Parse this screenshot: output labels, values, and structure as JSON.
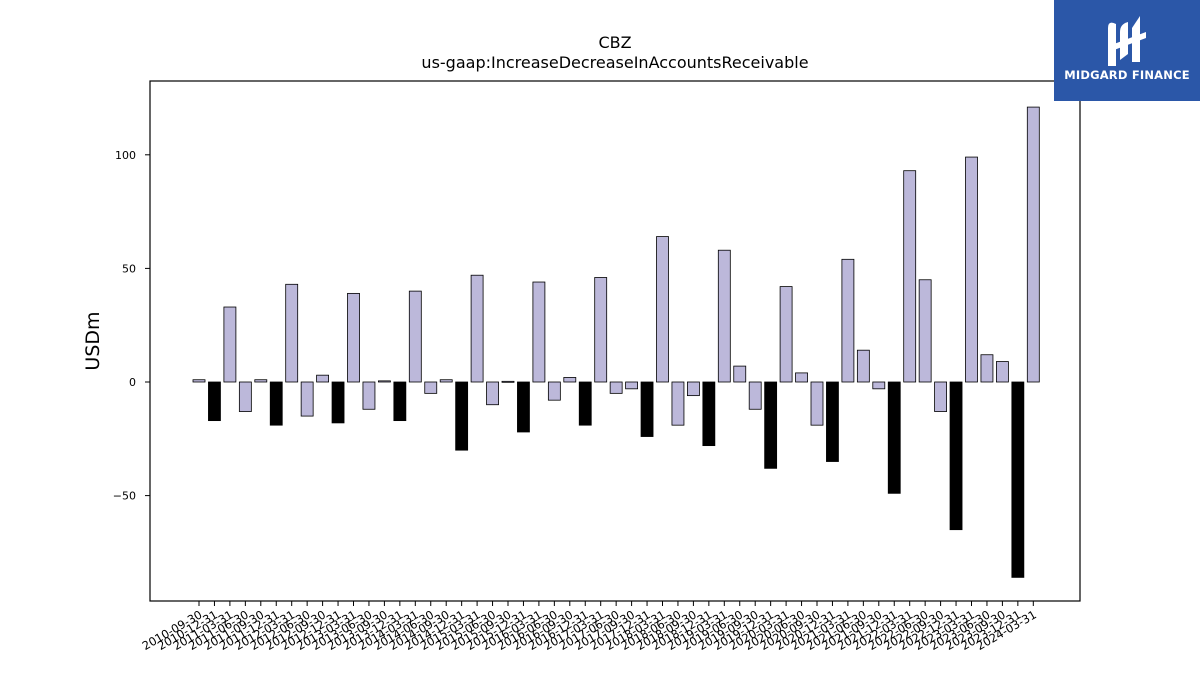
{
  "brand": {
    "name": "MIDGARD FINANCE",
    "logo_icon": "midgard-logo-icon",
    "color": "#2b57a8"
  },
  "chart_data": {
    "type": "bar",
    "title": "CBZ",
    "subtitle": "us-gaap:IncreaseDecreaseInAccountsReceivable",
    "ylabel": "USDm",
    "xlabel": "",
    "ylim": [
      -96,
      132
    ],
    "yticks": [
      -50,
      0,
      50,
      100
    ],
    "grid": false,
    "legend": "none",
    "colors": {
      "positive": "#bcb8da",
      "negative": "#000000",
      "edge": "#000000"
    },
    "categories": [
      "2010-09-30",
      "2010-12-31",
      "2011-03-31",
      "2011-06-30",
      "2011-09-30",
      "2011-12-31",
      "2012-03-31",
      "2012-06-30",
      "2012-09-30",
      "2012-12-31",
      "2013-03-31",
      "2013-06-30",
      "2013-09-30",
      "2013-12-31",
      "2014-03-31",
      "2014-06-30",
      "2014-09-30",
      "2014-12-31",
      "2015-03-31",
      "2015-06-30",
      "2015-09-30",
      "2015-12-31",
      "2016-03-31",
      "2016-06-30",
      "2016-09-30",
      "2016-12-31",
      "2017-03-31",
      "2017-06-30",
      "2017-09-30",
      "2017-12-31",
      "2018-03-31",
      "2018-06-30",
      "2018-09-30",
      "2018-12-31",
      "2019-03-31",
      "2019-06-30",
      "2019-09-30",
      "2019-12-31",
      "2020-03-31",
      "2020-06-30",
      "2020-09-30",
      "2020-12-31",
      "2021-03-31",
      "2021-06-30",
      "2021-09-30",
      "2021-12-31",
      "2022-03-31",
      "2022-06-30",
      "2022-09-30",
      "2022-12-31",
      "2023-03-31",
      "2023-06-30",
      "2023-09-30",
      "2023-12-31",
      "2024-03-31"
    ],
    "values": [
      1,
      -17,
      33,
      -13,
      1,
      -19,
      43,
      -15,
      3,
      -18,
      39,
      -12,
      0.5,
      -17,
      40,
      -5,
      1,
      -30,
      47,
      -10,
      0.3,
      -22,
      44,
      -8,
      2,
      -19,
      46,
      -5,
      -3,
      -24,
      64,
      -19,
      -6,
      -28,
      58,
      7,
      -12,
      -38,
      42,
      4,
      -19,
      -35,
      54,
      14,
      -3,
      -49,
      93,
      45,
      -13,
      -65,
      99,
      12,
      9,
      -86,
      121
    ],
    "series_style": [
      0,
      1,
      0,
      0,
      0,
      1,
      0,
      0,
      0,
      1,
      0,
      0,
      0,
      1,
      0,
      0,
      0,
      1,
      0,
      0,
      0,
      1,
      0,
      0,
      0,
      1,
      0,
      0,
      0,
      1,
      0,
      0,
      0,
      1,
      0,
      0,
      0,
      1,
      0,
      0,
      0,
      1,
      0,
      0,
      0,
      1,
      0,
      0,
      0,
      1,
      0,
      0,
      0,
      1,
      0
    ]
  }
}
